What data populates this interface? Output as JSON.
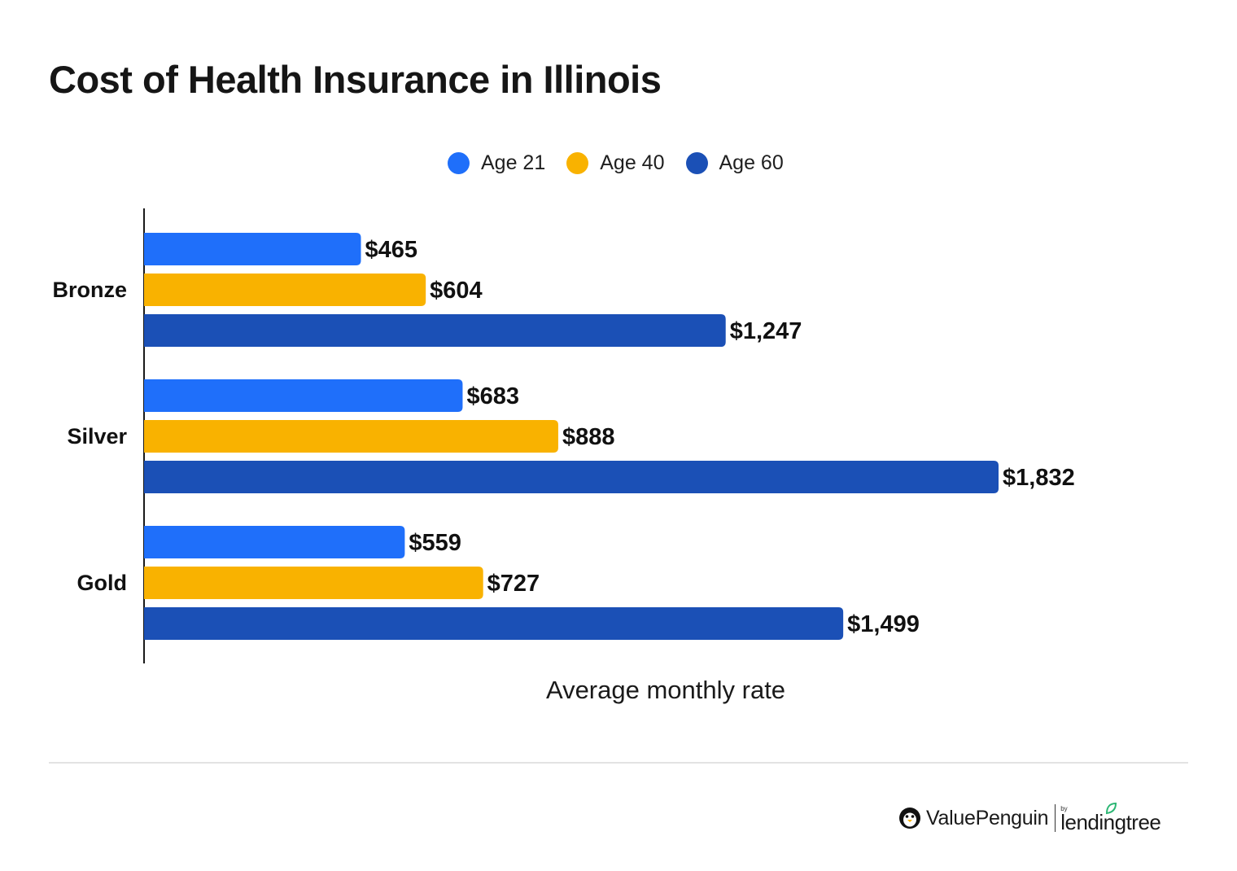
{
  "title": "Cost of Health Insurance in Illinois",
  "legend": [
    {
      "label": "Age 21",
      "color": "#1f6ffa"
    },
    {
      "label": "Age 40",
      "color": "#f9b200"
    },
    {
      "label": "Age 60",
      "color": "#1b50b6"
    }
  ],
  "chart_data": {
    "type": "bar",
    "orientation": "horizontal",
    "title": "Cost of Health Insurance in Illinois",
    "xlabel": "Average monthly rate",
    "ylabel": "",
    "xlim": [
      0,
      1832
    ],
    "grid": false,
    "legend_position": "top-center",
    "categories": [
      "Bronze",
      "Silver",
      "Gold"
    ],
    "series": [
      {
        "name": "Age 21",
        "color": "#1f6ffa",
        "values": [
          465,
          683,
          559
        ],
        "labels": [
          "$465",
          "$683",
          "$559"
        ]
      },
      {
        "name": "Age 40",
        "color": "#f9b200",
        "values": [
          604,
          888,
          727
        ],
        "labels": [
          "$604",
          "$888",
          "$727"
        ]
      },
      {
        "name": "Age 60",
        "color": "#1b50b6",
        "values": [
          1247,
          1832,
          1499
        ],
        "labels": [
          "$1,247",
          "$1,832",
          "$1,499"
        ]
      }
    ]
  },
  "branding": {
    "brand_name": "ValuePenguin",
    "by_text": "by",
    "partner_name": "lendingtree",
    "penguin_icon": "penguin-icon",
    "leaf_icon": "leaf-icon"
  }
}
